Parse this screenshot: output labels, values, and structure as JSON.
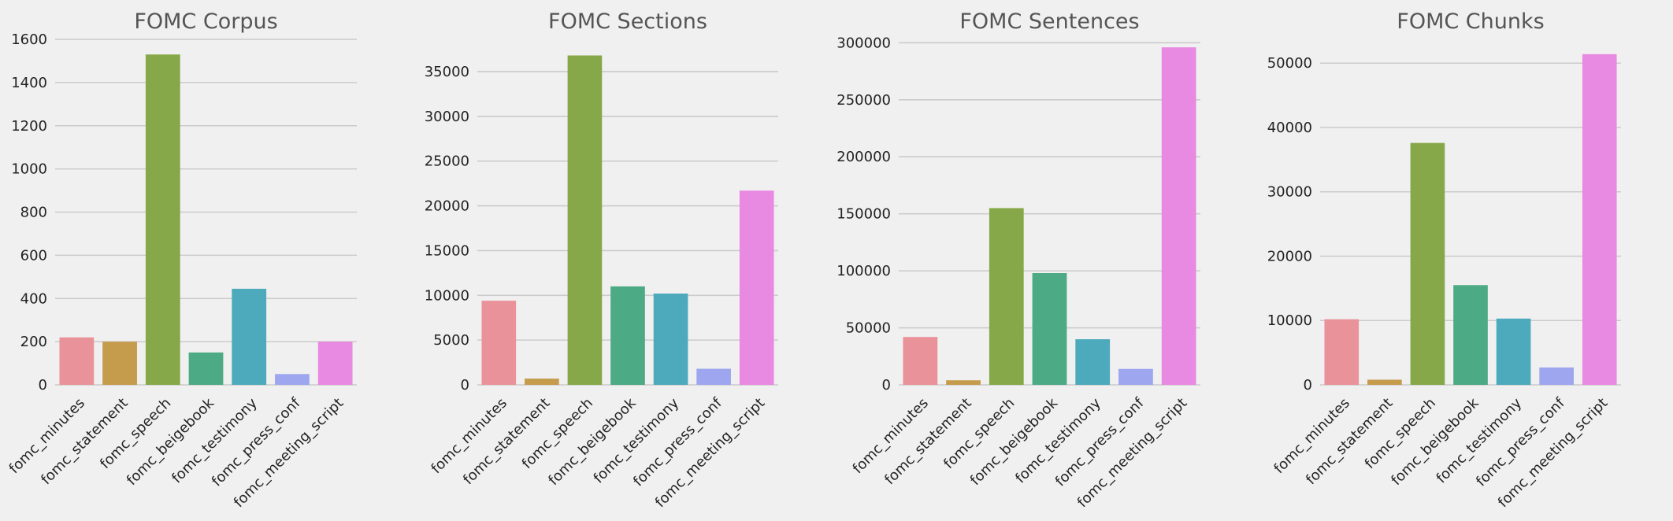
{
  "chart_data": [
    {
      "type": "bar",
      "title": "FOMC Corpus",
      "categories": [
        "fomc_minutes",
        "fomc_statement",
        "fomc_speech",
        "fomc_beigebook",
        "fomc_testimony",
        "fomc_press_conf",
        "fomc_meeting_script"
      ],
      "values": [
        220,
        200,
        1530,
        150,
        445,
        50,
        200
      ],
      "ylim": [
        0,
        1600
      ],
      "yticks": [
        0,
        200,
        400,
        600,
        800,
        1000,
        1200,
        1400,
        1600
      ],
      "xlabel": "",
      "ylabel": "",
      "grid": true
    },
    {
      "type": "bar",
      "title": "FOMC Sections",
      "categories": [
        "fomc_minutes",
        "fomc_statement",
        "fomc_speech",
        "fomc_beigebook",
        "fomc_testimony",
        "fomc_press_conf",
        "fomc_meeting_script"
      ],
      "values": [
        9400,
        700,
        36800,
        11000,
        10200,
        1800,
        21700
      ],
      "ylim": [
        0,
        38600
      ],
      "yticks": [
        0,
        5000,
        10000,
        15000,
        20000,
        25000,
        30000,
        35000
      ],
      "xlabel": "",
      "ylabel": "",
      "grid": true
    },
    {
      "type": "bar",
      "title": "FOMC Sentences",
      "categories": [
        "fomc_minutes",
        "fomc_statement",
        "fomc_speech",
        "fomc_beigebook",
        "fomc_testimony",
        "fomc_press_conf",
        "fomc_meeting_script"
      ],
      "values": [
        42000,
        4000,
        155000,
        98000,
        40000,
        14000,
        296000
      ],
      "ylim": [
        0,
        303000
      ],
      "yticks": [
        0,
        50000,
        100000,
        150000,
        200000,
        250000,
        300000
      ],
      "xlabel": "",
      "ylabel": "",
      "grid": true
    },
    {
      "type": "bar",
      "title": "FOMC Chunks",
      "categories": [
        "fomc_minutes",
        "fomc_statement",
        "fomc_speech",
        "fomc_beigebook",
        "fomc_testimony",
        "fomc_press_conf",
        "fomc_meeting_script"
      ],
      "values": [
        10200,
        800,
        37600,
        15500,
        10300,
        2700,
        51400
      ],
      "ylim": [
        0,
        53700
      ],
      "yticks": [
        0,
        10000,
        20000,
        30000,
        40000,
        50000
      ],
      "xlabel": "",
      "ylabel": "",
      "grid": true
    }
  ],
  "colors": [
    "#ea9299",
    "#c59c4c",
    "#86a848",
    "#4caa84",
    "#4caabc",
    "#9fa6f0",
    "#e88ae2"
  ]
}
